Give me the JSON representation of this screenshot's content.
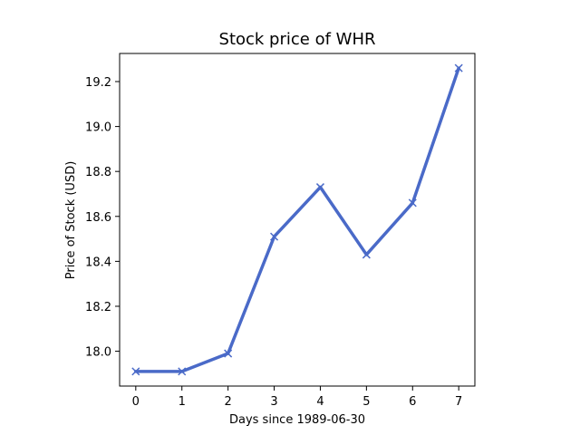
{
  "chart_data": {
    "type": "line",
    "title": "Stock price of WHR",
    "xlabel": "Days since 1989-06-30",
    "ylabel": "Price of Stock (USD)",
    "x": [
      0,
      1,
      2,
      3,
      4,
      5,
      6,
      7
    ],
    "series": [
      {
        "values": [
          17.91,
          17.91,
          17.99,
          18.51,
          18.73,
          18.43,
          18.66,
          19.26
        ],
        "color": "#4a6ac8",
        "marker": "x"
      }
    ],
    "xlim": [
      -0.35,
      7.35
    ],
    "ylim": [
      17.845,
      19.325
    ],
    "xticks": [
      0,
      1,
      2,
      3,
      4,
      5,
      6,
      7
    ],
    "xtick_labels": [
      "0",
      "1",
      "2",
      "3",
      "4",
      "5",
      "6",
      "7"
    ],
    "yticks": [
      18.0,
      18.2,
      18.4,
      18.6,
      18.8,
      19.0,
      19.2
    ],
    "ytick_labels": [
      "18.0",
      "18.2",
      "18.4",
      "18.6",
      "18.8",
      "19.0",
      "19.2"
    ],
    "grid": false,
    "legend": false
  }
}
